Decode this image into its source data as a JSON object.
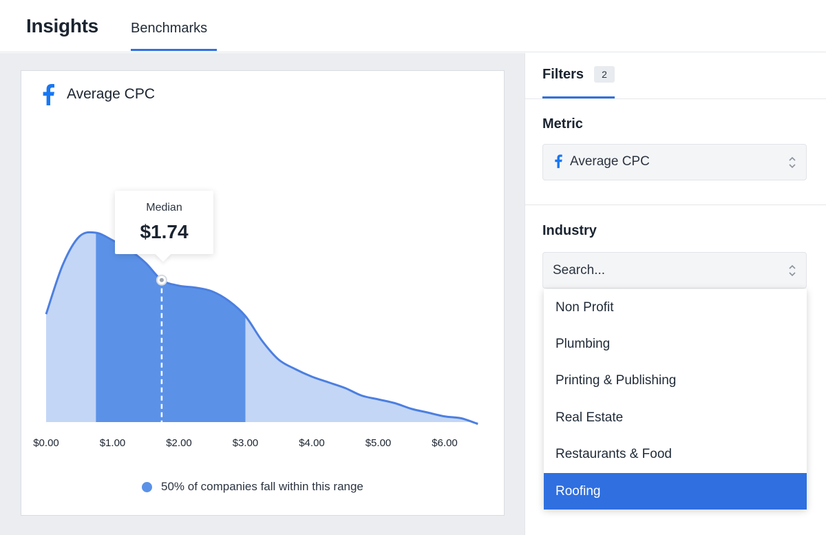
{
  "header": {
    "title": "Insights",
    "tabs": [
      {
        "label": "Benchmarks",
        "active": true
      }
    ]
  },
  "card": {
    "title": "Average CPC",
    "icon": "facebook-icon",
    "tooltip": {
      "label": "Median",
      "value": "$1.74"
    },
    "legend": "50% of companies fall within this range"
  },
  "chart_data": {
    "type": "area",
    "title": "Average CPC",
    "x": [
      0.0,
      0.25,
      0.5,
      0.75,
      1.0,
      1.25,
      1.5,
      1.74,
      2.0,
      2.25,
      2.5,
      2.75,
      3.0,
      3.25,
      3.5,
      3.75,
      4.0,
      4.25,
      4.5,
      4.75,
      5.0,
      5.25,
      5.5,
      5.75,
      6.0,
      6.25,
      6.5
    ],
    "y": [
      0.57,
      0.83,
      0.98,
      1.0,
      0.96,
      0.91,
      0.84,
      0.75,
      0.72,
      0.71,
      0.69,
      0.64,
      0.56,
      0.43,
      0.33,
      0.28,
      0.24,
      0.21,
      0.18,
      0.14,
      0.12,
      0.1,
      0.07,
      0.05,
      0.03,
      0.02,
      -0.01
    ],
    "xticks": [
      "$0.00",
      "$1.00",
      "$2.00",
      "$3.00",
      "$4.00",
      "$5.00",
      "$6.00"
    ],
    "xlim": [
      0,
      6.5
    ],
    "highlight_range": [
      0.75,
      3.0
    ],
    "median": 1.74,
    "legend": "50% of companies fall within this range",
    "colors": {
      "fill": "#c3d6f6",
      "highlight": "#5b92e8",
      "line": "#4c7fe0"
    }
  },
  "filters": {
    "tab_label": "Filters",
    "count": "2",
    "metric": {
      "label": "Metric",
      "value": "Average CPC",
      "icon": "facebook-icon"
    },
    "industry": {
      "label": "Industry",
      "placeholder": "Search...",
      "options": [
        {
          "label": "Non Profit",
          "selected": false
        },
        {
          "label": "Plumbing",
          "selected": false
        },
        {
          "label": "Printing & Publishing",
          "selected": false
        },
        {
          "label": "Real Estate",
          "selected": false
        },
        {
          "label": "Restaurants & Food",
          "selected": false
        },
        {
          "label": "Roofing",
          "selected": true
        }
      ]
    }
  },
  "colors": {
    "accent": "#2f6fe0",
    "facebook": "#1877f2"
  }
}
